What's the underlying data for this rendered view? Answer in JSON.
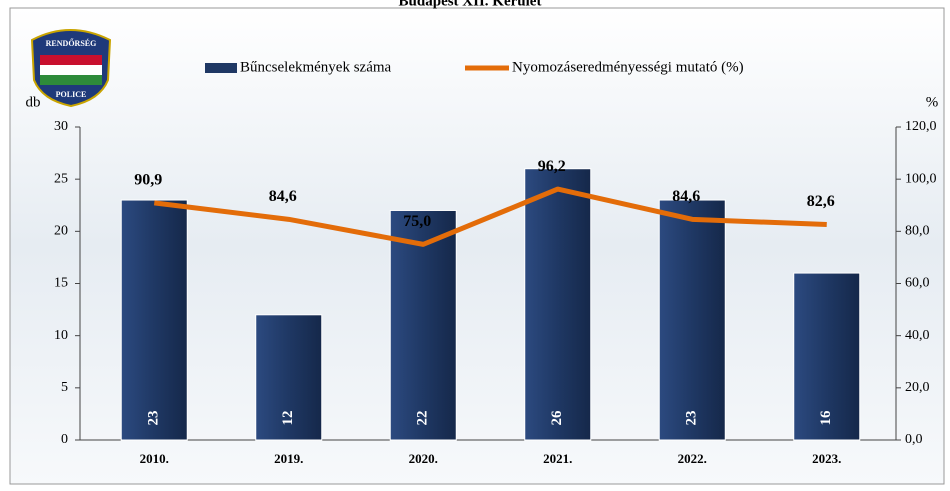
{
  "chart_data": {
    "type": "combo",
    "title": "Budapest XII. Kerület",
    "logo": {
      "top": "RENDŐRSÉG",
      "bottom": "POLICE"
    },
    "categories": [
      "2010.",
      "2019.",
      "2020.",
      "2021.",
      "2022.",
      "2023."
    ],
    "series": [
      {
        "name": "Bűncselekmények száma",
        "type": "bar",
        "color": "#1f3864",
        "values": [
          23,
          12,
          22,
          26,
          23,
          16
        ]
      },
      {
        "name": "Nyomozáseredményességi mutató (%)",
        "type": "line",
        "axis": "y2",
        "color": "#e36c09",
        "values": [
          90.9,
          84.6,
          75.0,
          96.2,
          84.6,
          82.6
        ],
        "value_labels": [
          "90,9",
          "84,6",
          "75,0",
          "96,2",
          "84,6",
          "82,6"
        ]
      }
    ],
    "y_label": "db",
    "y2_label": "%",
    "ylim": [
      0,
      30
    ],
    "yticks": [
      0,
      5,
      10,
      15,
      20,
      25,
      30
    ],
    "y2lim": [
      0,
      120
    ],
    "y2ticks": [
      {
        "value": 0,
        "label": "0,0"
      },
      {
        "value": 20,
        "label": "20,0"
      },
      {
        "value": 40,
        "label": "40,0"
      },
      {
        "value": 60,
        "label": "60,0"
      },
      {
        "value": 80,
        "label": "80,0"
      },
      {
        "value": 100,
        "label": "100,0"
      },
      {
        "value": 120,
        "label": "120,0"
      }
    ]
  }
}
